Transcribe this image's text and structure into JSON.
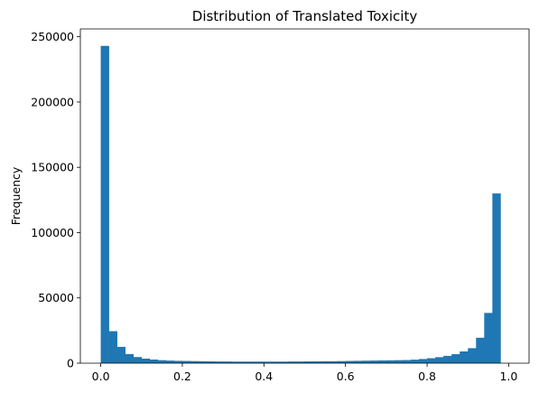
{
  "chart_data": {
    "type": "bar",
    "title": "Distribution of Translated Toxicity",
    "xlabel": "",
    "ylabel": "Frequency",
    "xlim": [
      -0.05,
      1.05
    ],
    "ylim": [
      0,
      256000
    ],
    "x_ticks": [
      0.0,
      0.2,
      0.4,
      0.6,
      0.8,
      1.0
    ],
    "x_tick_labels": [
      "0.0",
      "0.2",
      "0.4",
      "0.6",
      "0.8",
      "1.0"
    ],
    "y_ticks": [
      0,
      50000,
      100000,
      150000,
      200000,
      250000
    ],
    "y_tick_labels": [
      "0",
      "50000",
      "100000",
      "150000",
      "200000",
      "250000"
    ],
    "grid": false,
    "bar_color": "#1f77b4",
    "bin_start": 0.0,
    "bin_width": 0.02,
    "values": [
      243000,
      24500,
      12500,
      7000,
      4700,
      3500,
      2800,
      2300,
      2000,
      1800,
      1700,
      1600,
      1500,
      1400,
      1300,
      1300,
      1200,
      1200,
      1200,
      1200,
      1200,
      1200,
      1200,
      1300,
      1300,
      1400,
      1400,
      1500,
      1500,
      1600,
      1700,
      1800,
      1900,
      2000,
      2100,
      2200,
      2300,
      2400,
      2700,
      3200,
      3800,
      4600,
      5600,
      6900,
      9000,
      11500,
      19500,
      38500,
      130000
    ]
  }
}
